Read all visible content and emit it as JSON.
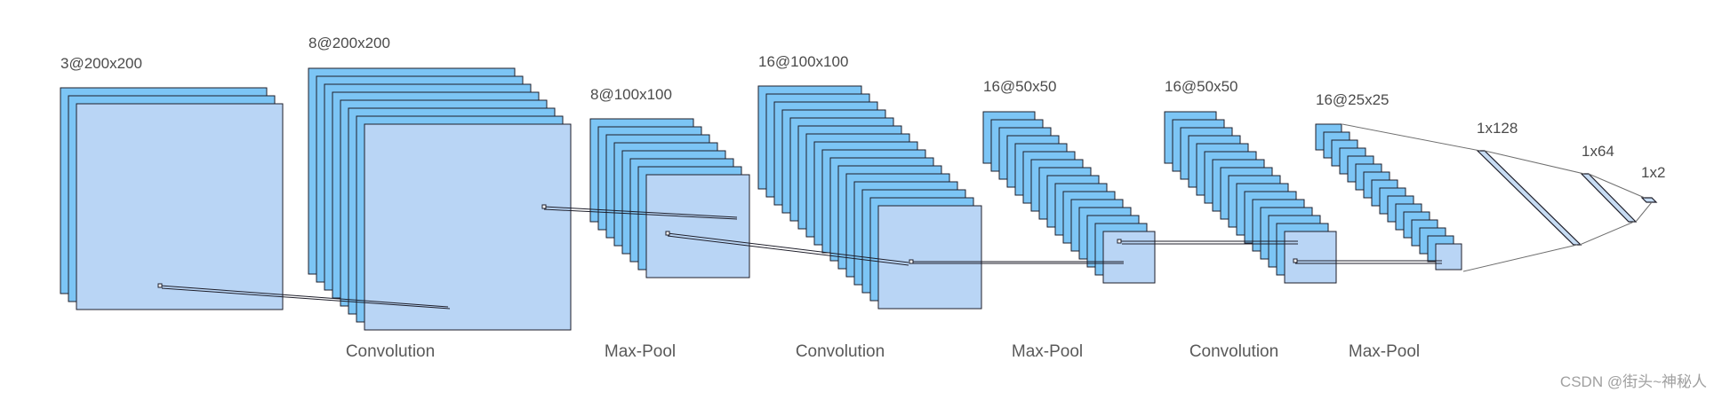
{
  "diagram": {
    "colors": {
      "front": "#b9d5f5",
      "back": "#7cc5f5",
      "stroke": "#1e1e2a",
      "line": "#6f6f6f",
      "dense": "#c7dcf3"
    },
    "layers": [
      {
        "label": "3@200x200"
      },
      {
        "label": "8@200x200"
      },
      {
        "label": "8@100x100"
      },
      {
        "label": "16@100x100"
      },
      {
        "label": "16@50x50"
      },
      {
        "label": "16@50x50"
      },
      {
        "label": "16@25x25"
      }
    ],
    "dense": [
      {
        "label": "1x128"
      },
      {
        "label": "1x64"
      },
      {
        "label": "1x2"
      }
    ],
    "operations": [
      {
        "label": "Convolution"
      },
      {
        "label": "Max-Pool"
      },
      {
        "label": "Convolution"
      },
      {
        "label": "Max-Pool"
      },
      {
        "label": "Convolution"
      },
      {
        "label": "Max-Pool"
      }
    ]
  },
  "watermark": "CSDN @街头~神秘人"
}
